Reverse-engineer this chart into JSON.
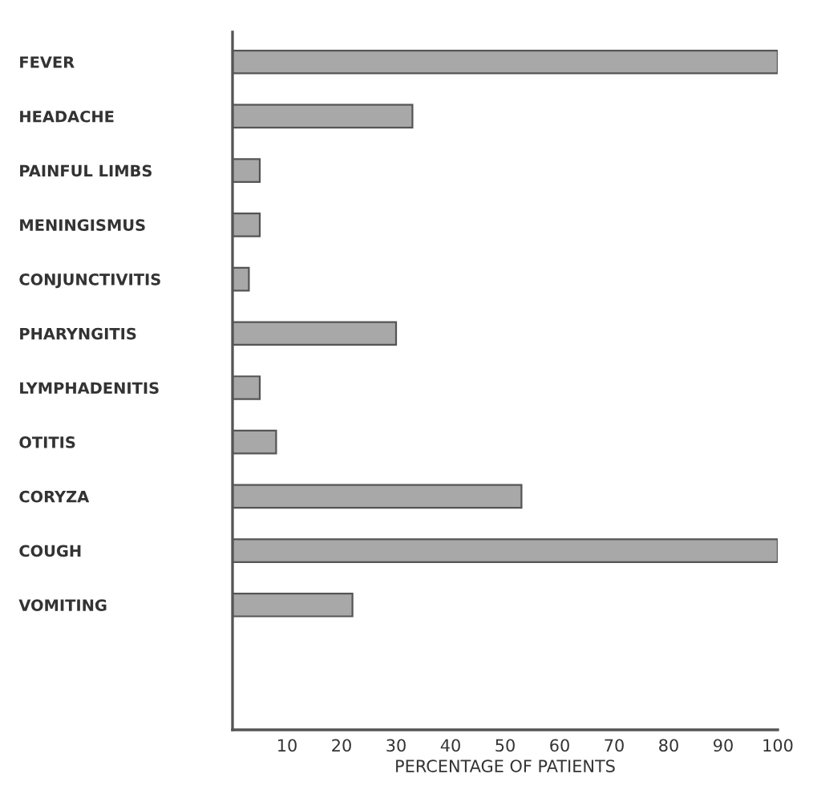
{
  "chart_data": {
    "type": "bar",
    "orientation": "horizontal",
    "xlabel": "PERCENTAGE OF PATIENTS",
    "categories": [
      "FEVER",
      "HEADACHE",
      "PAINFUL LIMBS",
      "MENINGISMUS",
      "CONJUNCTIVITIS",
      "PHARYNGITIS",
      "LYMPHADENITIS",
      "OTITIS",
      "CORYZA",
      "COUGH",
      "VOMITING"
    ],
    "values": [
      100,
      33,
      5,
      5,
      3,
      30,
      5,
      8,
      53,
      100,
      22
    ],
    "color": "#a8a8a8",
    "xlim": [
      0,
      100
    ],
    "xticks": [
      10,
      20,
      30,
      40,
      50,
      60,
      70,
      80,
      90,
      100
    ],
    "grid": false
  }
}
